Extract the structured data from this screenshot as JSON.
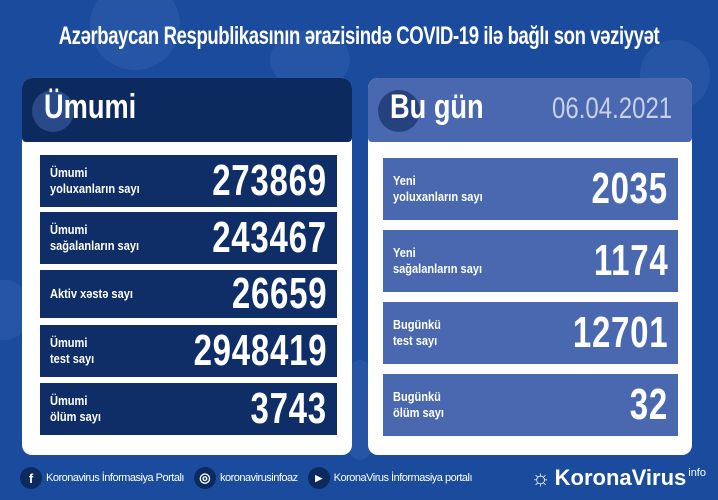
{
  "title": "Azərbaycan Respublikasının ərazisində COVID-19 ilə bağlı son vəziyyət",
  "colors": {
    "background": "#1b4b9c",
    "left_header": "#0d2a5e",
    "right_header": "#4a68b0",
    "left_rows": "#0f2d66",
    "right_rows": "#4a68b0",
    "date": "#c8d0ea"
  },
  "total": {
    "heading": "Ümumi",
    "rows": [
      {
        "label1": "Ümumi",
        "label2": "yoluxanların sayı",
        "value": "273869"
      },
      {
        "label1": "Ümumi",
        "label2": "sağalanların sayı",
        "value": "243467"
      },
      {
        "label1": "Aktiv xəstə sayı",
        "label2": "",
        "value": "26659"
      },
      {
        "label1": "Ümumi",
        "label2": "test sayı",
        "value": "2948419"
      },
      {
        "label1": "Ümumi",
        "label2": "ölüm sayı",
        "value": "3743"
      }
    ]
  },
  "today": {
    "heading": "Bu gün",
    "date": "06.04.2021",
    "rows": [
      {
        "label1": "Yeni",
        "label2": "yoluxanların sayı",
        "value": "2035"
      },
      {
        "label1": "Yeni",
        "label2": "sağalanların sayı",
        "value": "1174"
      },
      {
        "label1": "Bugünkü",
        "label2": "test sayı",
        "value": "12701"
      },
      {
        "label1": "Bugünkü",
        "label2": "ölüm sayı",
        "value": "32"
      }
    ]
  },
  "footer": {
    "facebook": "Koronavirus İnformasiya Portalı",
    "instagram": "koronavirusinfoaz",
    "youtube": "KoronaVirus İnformasiya portalı",
    "brand": "KoronaVirus",
    "brand_sup": "info"
  }
}
